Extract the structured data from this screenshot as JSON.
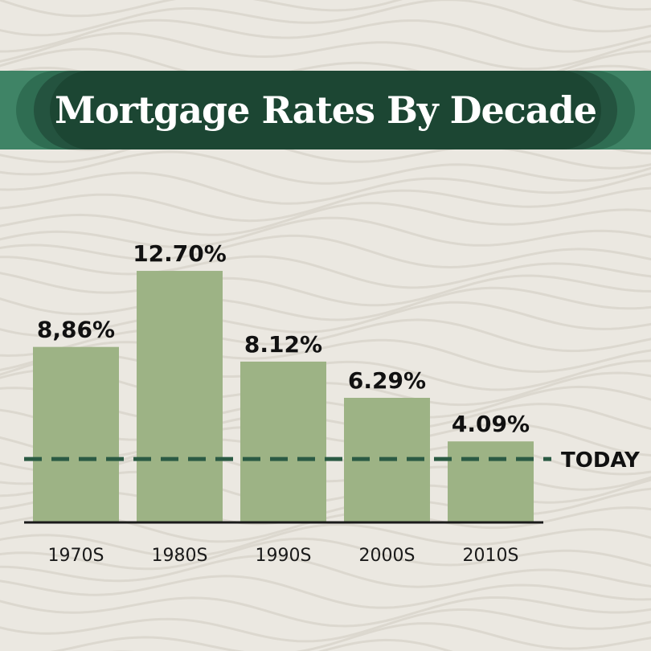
{
  "title": "Mortgage Rates By Decade",
  "colors": {
    "background": "#ebe8e1",
    "banner": "#1c4633",
    "bar": "#9db385",
    "reference_line": "#2b5a44",
    "axis": "#1a1a1a"
  },
  "chart_data": {
    "type": "bar",
    "title": "Mortgage Rates By Decade",
    "categories": [
      "1970S",
      "1980S",
      "1990S",
      "2000S",
      "2010S"
    ],
    "values": [
      8.86,
      12.7,
      8.12,
      6.29,
      4.09
    ],
    "value_labels": [
      "8,86%",
      "12.70%",
      "8.12%",
      "6.29%",
      "4.09%"
    ],
    "ylim": [
      0,
      14
    ],
    "grid": false,
    "reference_line": {
      "label": "TODAY",
      "value": 3.2,
      "style": "dashed"
    }
  }
}
